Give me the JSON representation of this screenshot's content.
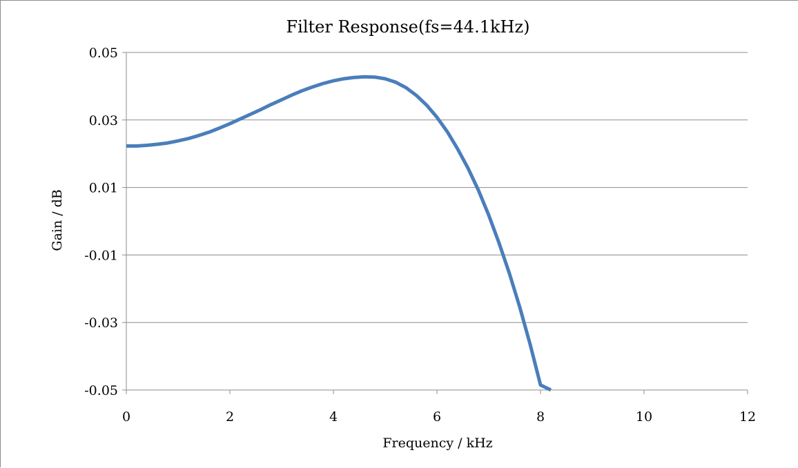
{
  "chart_data": {
    "type": "line",
    "title": "Filter Response(fs=44.1kHz)",
    "xlabel": "Frequency / kHz",
    "ylabel": "Gain / dB",
    "xlim": [
      0,
      12
    ],
    "ylim": [
      -0.05,
      0.05
    ],
    "x_ticks": [
      "0",
      "2",
      "4",
      "6",
      "8",
      "10",
      "12"
    ],
    "y_ticks": [
      "0.05",
      "0.03",
      "0.01",
      "-0.01",
      "-0.03",
      "-0.05"
    ],
    "x_tick_values": [
      0,
      2,
      4,
      6,
      8,
      10,
      12
    ],
    "y_tick_values": [
      0.05,
      0.03,
      0.01,
      -0.01,
      -0.03,
      -0.05
    ],
    "grid": "horizontal",
    "legend": "none",
    "series": [
      {
        "color": "#4a7ebb",
        "x": [
          0,
          0.2,
          0.4,
          0.6,
          0.8,
          1.0,
          1.2,
          1.4,
          1.6,
          1.8,
          2.0,
          2.2,
          2.4,
          2.6,
          2.8,
          3.0,
          3.2,
          3.4,
          3.6,
          3.8,
          4.0,
          4.2,
          4.4,
          4.6,
          4.8,
          5.0,
          5.2,
          5.4,
          5.6,
          5.8,
          6.0,
          6.2,
          6.4,
          6.6,
          6.8,
          7.0,
          7.2,
          7.4,
          7.6,
          7.8,
          8.0,
          8.2
        ],
        "y": [
          0.0223,
          0.0223,
          0.0225,
          0.0228,
          0.0232,
          0.0238,
          0.0245,
          0.0254,
          0.0264,
          0.0276,
          0.0289,
          0.0303,
          0.0317,
          0.0331,
          0.0346,
          0.036,
          0.0374,
          0.0387,
          0.0398,
          0.0408,
          0.0416,
          0.0422,
          0.0426,
          0.0428,
          0.0427,
          0.0422,
          0.0412,
          0.0396,
          0.0373,
          0.0344,
          0.0308,
          0.0265,
          0.0214,
          0.0157,
          0.0092,
          0.0018,
          -0.0065,
          -0.0155,
          -0.0255,
          -0.0365,
          -0.0485,
          -0.0505
        ]
      }
    ]
  }
}
